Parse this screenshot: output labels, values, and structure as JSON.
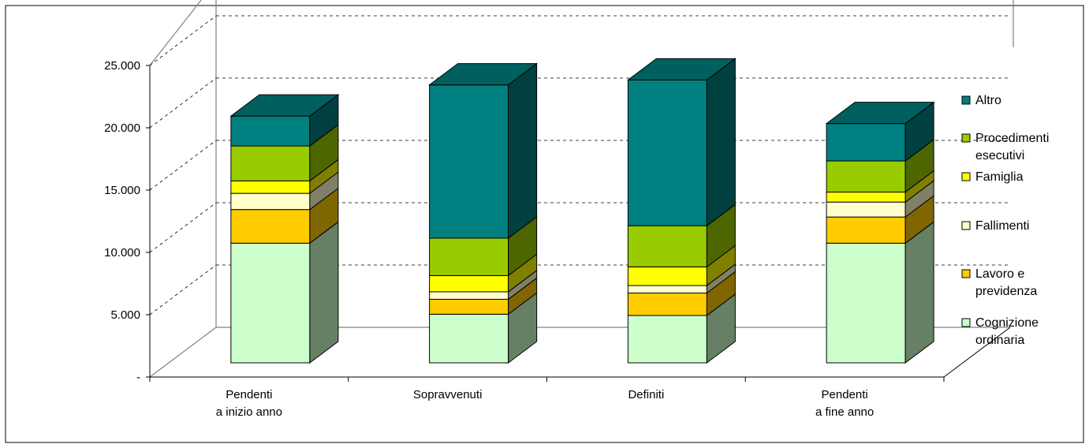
{
  "chart_data": {
    "type": "bar",
    "stacked": true,
    "three_d": true,
    "categories": [
      [
        "Pendenti",
        "a inizio anno"
      ],
      [
        "Sopravvenuti"
      ],
      [
        "Definiti"
      ],
      [
        "Pendenti",
        "a fine anno"
      ]
    ],
    "ylim": [
      0,
      25000
    ],
    "yticks": [
      0,
      5000,
      10000,
      15000,
      20000,
      25000
    ],
    "ytick_labels": [
      "-",
      "5.000",
      "10.000",
      "15.000",
      "20.000",
      "25.000"
    ],
    "grid": "horizontal dashed",
    "legend_position": "right",
    "series": [
      {
        "name": [
          "Cognizione",
          "ordinaria"
        ],
        "color": "#ccffcc",
        "values": [
          9600,
          3900,
          3800,
          9600
        ]
      },
      {
        "name": [
          "Lavoro e",
          "previdenza"
        ],
        "color": "#ffcc00",
        "values": [
          2700,
          1200,
          1800,
          2100
        ]
      },
      {
        "name": [
          "Fallimenti"
        ],
        "color": "#ffffcc",
        "values": [
          1300,
          600,
          600,
          1200
        ]
      },
      {
        "name": [
          "Famiglia"
        ],
        "color": "#ffff00",
        "values": [
          1000,
          1300,
          1500,
          800
        ]
      },
      {
        "name": [
          "Procedimenti",
          "esecutivi"
        ],
        "color": "#99cc00",
        "values": [
          2800,
          3000,
          3300,
          2500
        ]
      },
      {
        "name": [
          "Altro"
        ],
        "color": "#008080",
        "values": [
          2400,
          12300,
          11700,
          3000
        ]
      }
    ]
  }
}
